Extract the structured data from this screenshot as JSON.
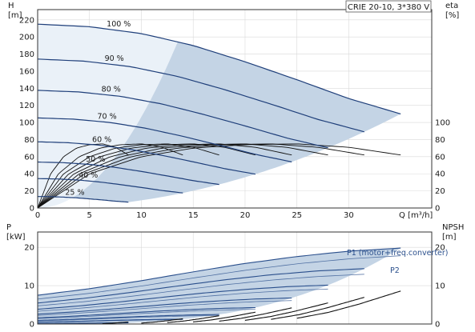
{
  "title_box": "CRIE 20-10, 3*380 V",
  "colors": {
    "speed_curve": "#1f3f7a",
    "operating_area": "#c4d4e5",
    "operating_area_light": "#eaf1f8",
    "eta_curve": "#111111",
    "power_curve": "#2a4f8c",
    "npsh_curve": "#111111"
  },
  "chart_data": [
    {
      "type": "line",
      "name": "Head and efficiency",
      "xlabel": "Q [m³/h]",
      "xlim": [
        0,
        38
      ],
      "xticks": [
        0,
        5,
        10,
        15,
        20,
        25,
        30
      ],
      "ylabel": "H\n[m]",
      "ylim": [
        0,
        232
      ],
      "yticks": [
        0,
        20,
        40,
        60,
        80,
        100,
        120,
        140,
        160,
        180,
        200,
        220
      ],
      "y2label": "eta\n[%]",
      "y2lim": [
        0,
        232
      ],
      "y2ticks": [
        0,
        20,
        40,
        60,
        80,
        100
      ],
      "grid": true,
      "speed_curves": [
        {
          "label": "100 %",
          "fraction": 1.0
        },
        {
          "label": "90 %",
          "fraction": 0.9
        },
        {
          "label": "80 %",
          "fraction": 0.8
        },
        {
          "label": "70 %",
          "fraction": 0.7
        },
        {
          "label": "60 %",
          "fraction": 0.6
        },
        {
          "label": "50 %",
          "fraction": 0.5
        },
        {
          "label": "40 %",
          "fraction": 0.4
        },
        {
          "label": "25 %",
          "fraction": 0.25
        }
      ],
      "head_curve_100": {
        "q": [
          0,
          5,
          10,
          15,
          20,
          25,
          30,
          35
        ],
        "h": [
          215,
          212,
          204,
          190,
          171,
          150,
          128,
          110
        ]
      },
      "efficiency_100": {
        "q": [
          0,
          5,
          10,
          15,
          20,
          25,
          30,
          35
        ],
        "eta": [
          0,
          40,
          60,
          70,
          74,
          75,
          71,
          62
        ]
      }
    },
    {
      "type": "line",
      "name": "Power and NPSH",
      "xlim": [
        0,
        38
      ],
      "ylabel": "P\n[kW]",
      "ylim": [
        0,
        24
      ],
      "yticks": [
        0,
        10,
        20
      ],
      "y2label": "NPSH\n[m]",
      "y2lim": [
        0,
        24
      ],
      "y2ticks": [
        0,
        10,
        20
      ],
      "grid": true,
      "series": [
        {
          "name": "P1 (motor+freq.converter)"
        },
        {
          "name": "P2"
        }
      ],
      "power_p1_100": {
        "q": [
          0,
          5,
          10,
          15,
          20,
          25,
          30,
          35
        ],
        "p": [
          7.5,
          9.2,
          11.3,
          13.6,
          15.8,
          17.6,
          19.0,
          19.8
        ]
      },
      "power_p2_100": {
        "q": [
          0,
          5,
          10,
          15,
          20,
          25,
          30,
          35
        ],
        "p": [
          6.5,
          8.0,
          9.9,
          12.0,
          14.0,
          15.7,
          17.0,
          17.8
        ]
      },
      "npsh_100": {
        "q": [
          25,
          28,
          31,
          35
        ],
        "npsh": [
          1.5,
          3.0,
          5.2,
          8.6
        ]
      }
    }
  ]
}
